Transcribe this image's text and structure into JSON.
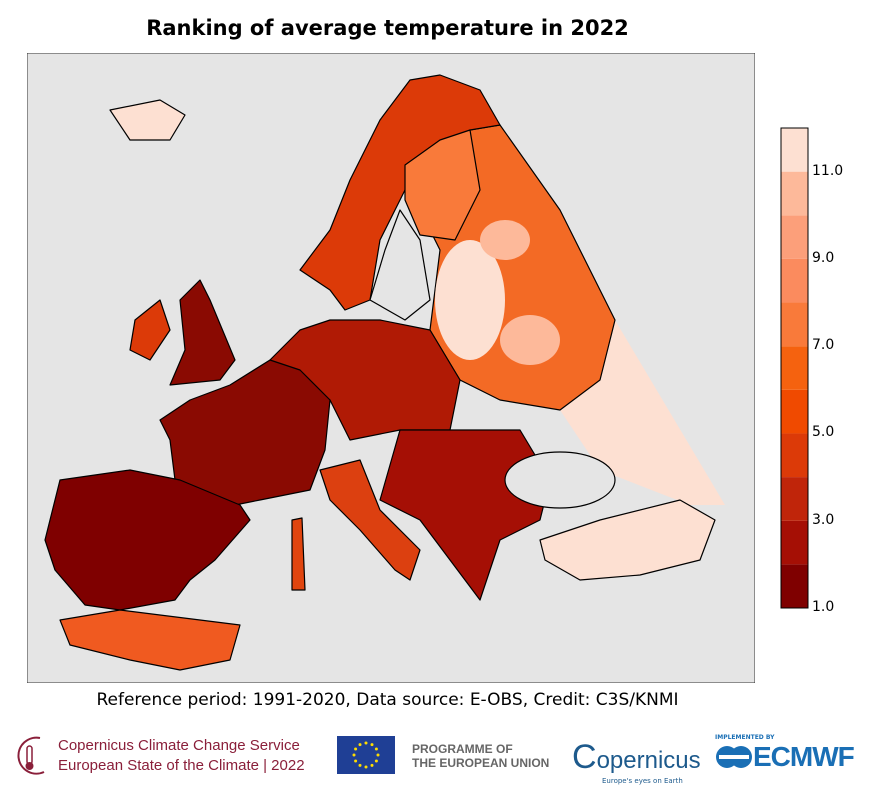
{
  "title": "Ranking of average temperature in 2022",
  "credit": "Reference period: 1991-2020, Data source: E-OBS, Credit: C3S/KNMI",
  "colorbar": {
    "range": [
      1,
      12
    ],
    "ticks": [
      "1.0",
      "3.0",
      "5.0",
      "7.0",
      "9.0",
      "11.0"
    ],
    "tick_values": [
      1,
      3,
      5,
      7,
      9,
      11
    ],
    "colors": [
      "#7f0000",
      "#a50f05",
      "#c0250a",
      "#dc3a08",
      "#f04a00",
      "#f5620f",
      "#f97a3a",
      "#fb8b5e",
      "#fc9f7a",
      "#fdb99a",
      "#fde0d2"
    ]
  },
  "map": {
    "ocean_color": "#e5e5e5",
    "land_no_data_color": "#e5e5e5"
  },
  "footer": {
    "c3s_line1": "Copernicus Climate Change Service",
    "c3s_line2": "European State of the Climate | 2022",
    "programme_line1": "PROGRAMME OF",
    "programme_line2": "THE EUROPEAN UNION",
    "copernicus": "opernicus",
    "copernicus_c": "C",
    "copernicus_tagline": "Europe's eyes on Earth",
    "ecmwf_implemented": "IMPLEMENTED BY",
    "ecmwf": "ECMWF"
  }
}
